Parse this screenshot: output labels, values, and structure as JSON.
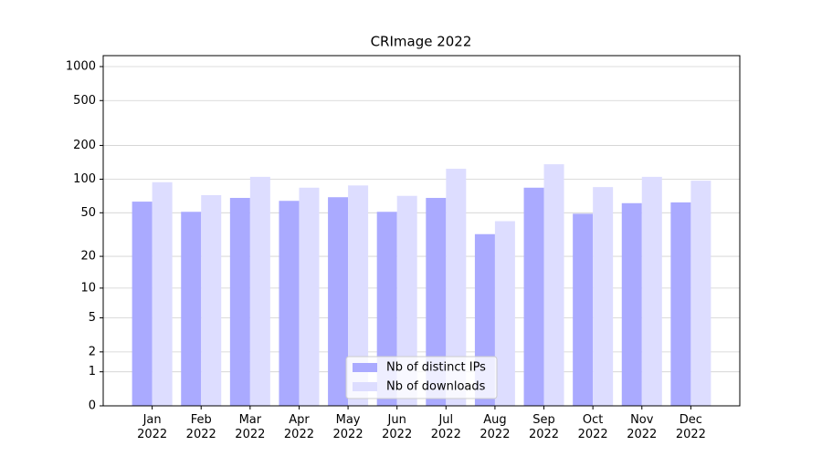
{
  "chart_data": {
    "type": "bar",
    "title": "CRImage 2022",
    "yscale": "log1p",
    "categories": [
      "Jan\n2022",
      "Feb\n2022",
      "Mar\n2022",
      "Apr\n2022",
      "May\n2022",
      "Jun\n2022",
      "Jul\n2022",
      "Aug\n2022",
      "Sep\n2022",
      "Oct\n2022",
      "Nov\n2022",
      "Dec\n2022"
    ],
    "series": [
      {
        "name": "Nb of distinct IPs",
        "color": "#aaaaff",
        "values": [
          63,
          51,
          68,
          64,
          69,
          51,
          68,
          32,
          84,
          49,
          61,
          62
        ]
      },
      {
        "name": "Nb of downloads",
        "color": "#ddddff",
        "values": [
          94,
          72,
          105,
          84,
          88,
          71,
          124,
          42,
          136,
          85,
          105,
          97
        ]
      }
    ],
    "ylim": [
      0,
      1250
    ],
    "yticks": [
      0,
      1,
      2,
      5,
      10,
      20,
      50,
      100,
      200,
      500,
      1000
    ],
    "grid": true,
    "legend": "lower center"
  }
}
